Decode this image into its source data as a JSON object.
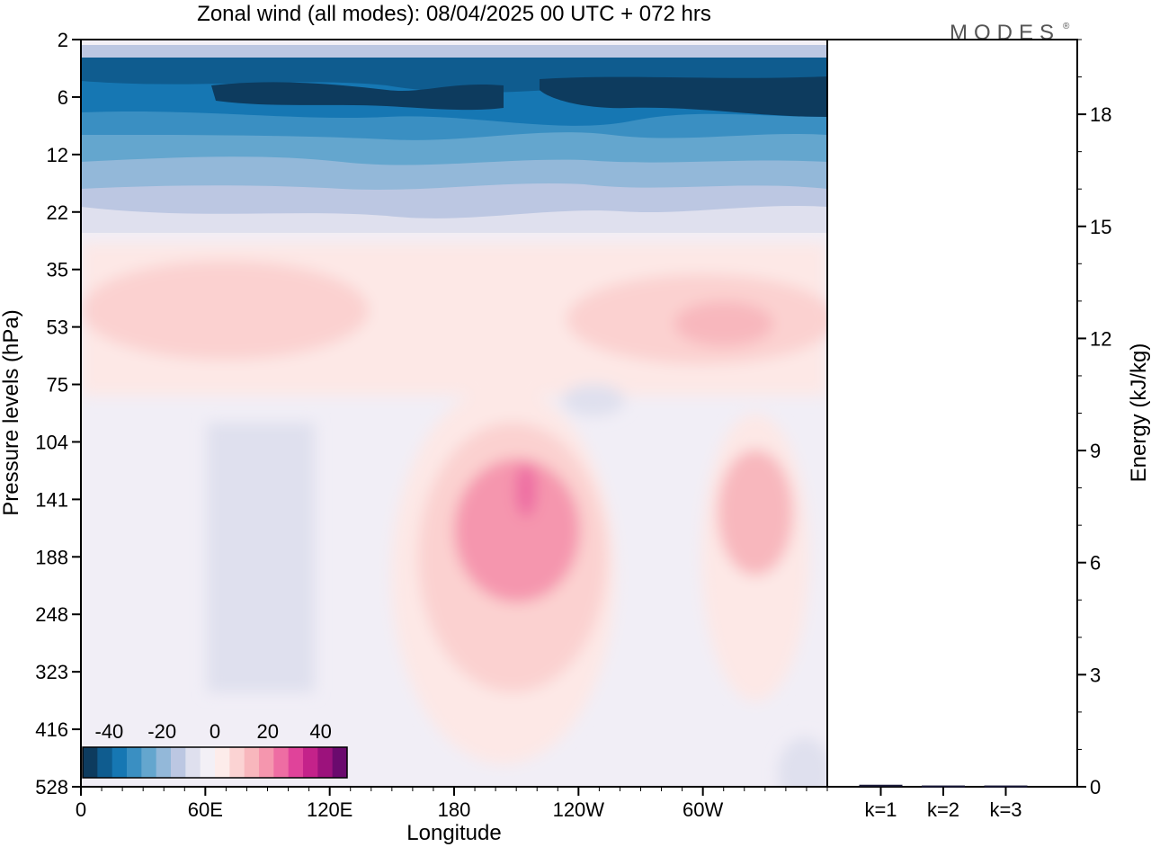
{
  "title": "Zonal wind (all modes):  08/04/2025  00 UTC  + 072 hrs",
  "brand": "MODES",
  "brand_mark": "®",
  "chart_data": [
    {
      "type": "heatmap",
      "xlabel": "Longitude",
      "ylabel": "Pressure levels (hPa)",
      "x_ticks": [
        "0",
        "60E",
        "120E",
        "180",
        "120W",
        "60W"
      ],
      "x_tick_values": [
        0,
        60,
        120,
        180,
        240,
        300
      ],
      "xlim": [
        0,
        360
      ],
      "y_ticks": [
        "2",
        "6",
        "12",
        "22",
        "35",
        "53",
        "75",
        "104",
        "141",
        "188",
        "248",
        "323",
        "416",
        "528"
      ],
      "colorbar": {
        "tick_labels": [
          "-40",
          "-20",
          "0",
          "20",
          "40"
        ],
        "tick_values": [
          -40,
          -20,
          0,
          20,
          40
        ],
        "range": [
          -50,
          50
        ],
        "colors": [
          "#0d3b5e",
          "#0f5c8f",
          "#1677b3",
          "#3a8fc2",
          "#64a6ce",
          "#93b8d9",
          "#bcc7e2",
          "#dfe0ee",
          "#f3f0f6",
          "#fdecea",
          "#fbd3d3",
          "#f8b7bd",
          "#f596ae",
          "#ee6da3",
          "#e0439a",
          "#c4228a",
          "#9c127c",
          "#6b0a6e"
        ]
      },
      "regions": [
        {
          "name": "easterly-jet-upper",
          "lon": [
            0,
            360
          ],
          "p": [
            2,
            22
          ],
          "value": -35
        },
        {
          "name": "westerly-band-35-75hPa",
          "lon": [
            0,
            360
          ],
          "p": [
            30,
            80
          ],
          "value": 8
        },
        {
          "name": "westerly-core-central-pacific",
          "lon": [
            180,
            240
          ],
          "p": [
            90,
            420
          ],
          "value": 25
        },
        {
          "name": "westerly-core-east-pacific",
          "lon": [
            300,
            345
          ],
          "p": [
            100,
            220
          ],
          "value": 12
        },
        {
          "name": "weak-easterly-low-levels-west",
          "lon": [
            0,
            160
          ],
          "p": [
            90,
            528
          ],
          "value": -3
        }
      ]
    },
    {
      "type": "bar",
      "ylabel": "Energy (kJ/kg)",
      "categories": [
        "k=1",
        "k=2",
        "k=3"
      ],
      "values": [
        0.03,
        0.01,
        0.01
      ],
      "ylim": [
        0,
        20
      ],
      "y_ticks": [
        0,
        3,
        6,
        9,
        12,
        15,
        18
      ]
    }
  ]
}
